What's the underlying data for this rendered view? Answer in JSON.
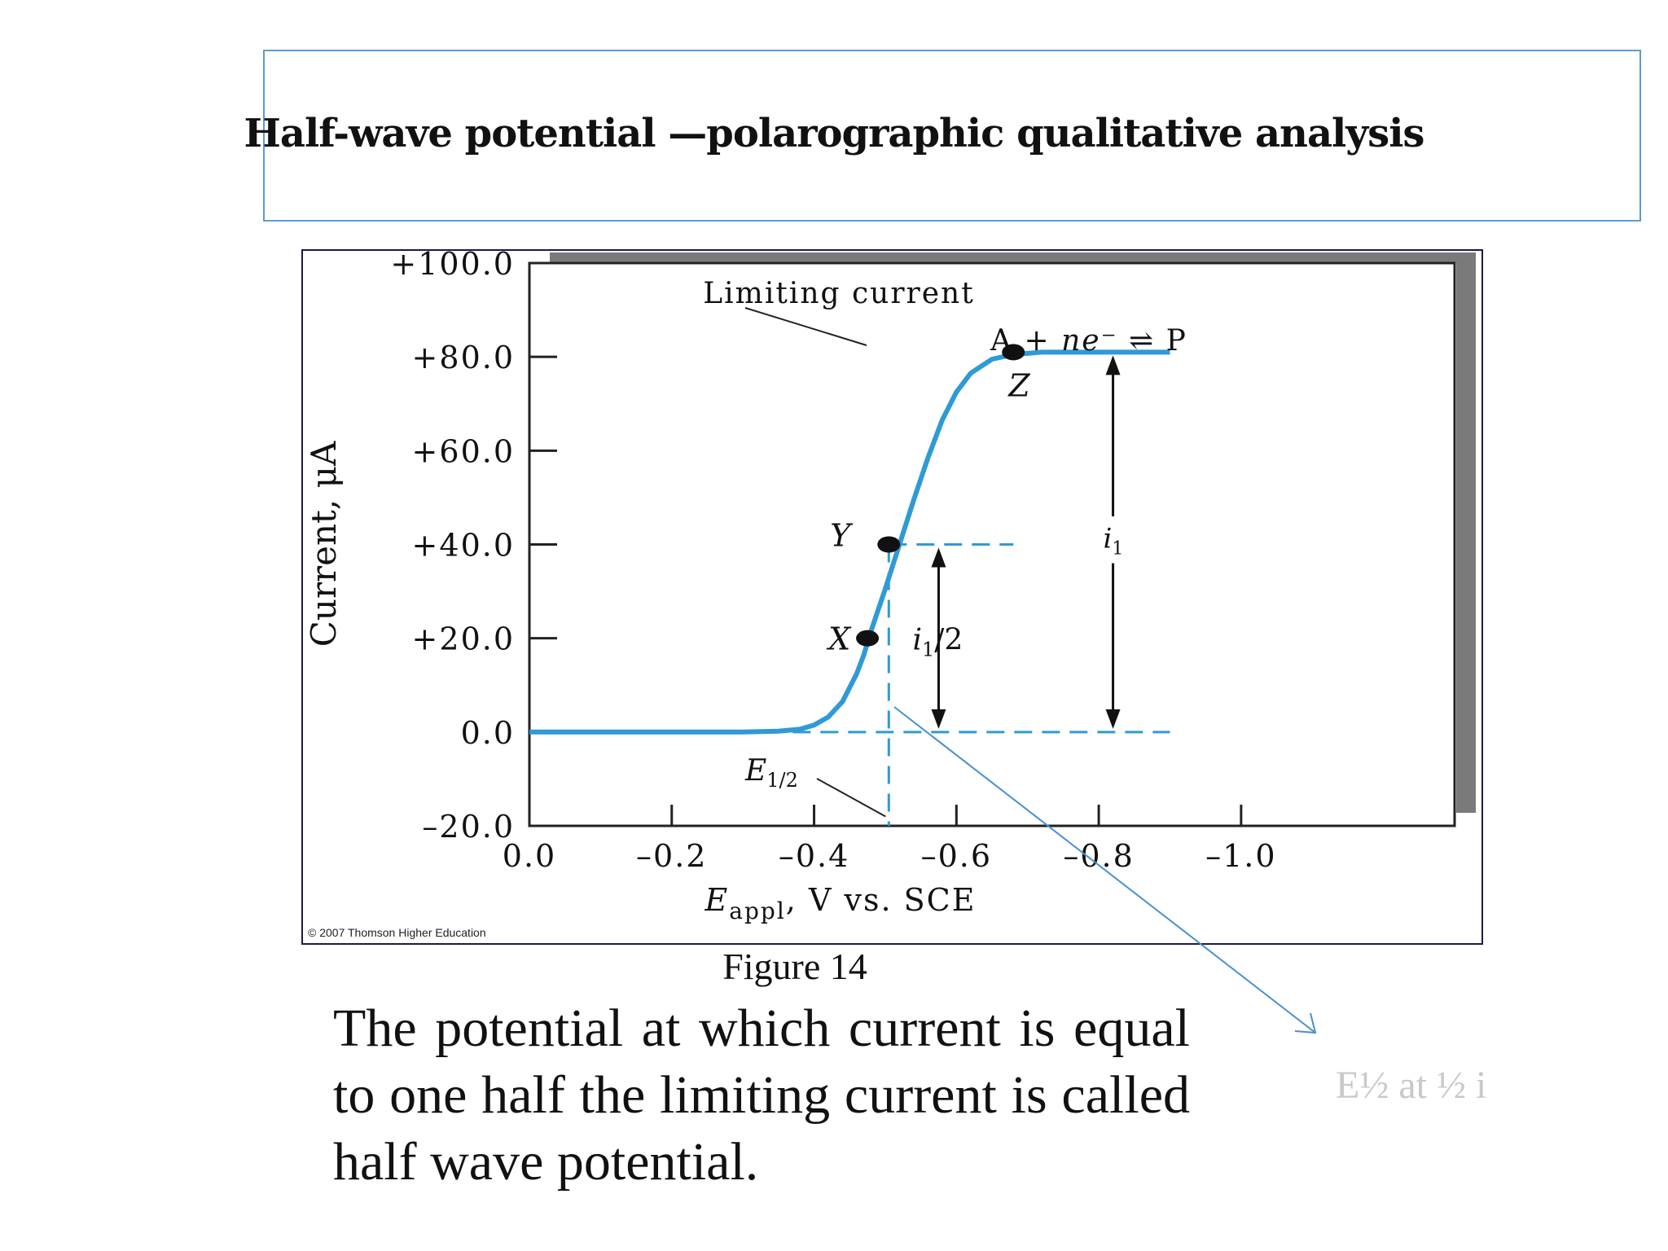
{
  "slide": {
    "title": "Half-wave potential —polarographic qualitative analysis",
    "figure_caption": "Figure 14",
    "body_text": "The potential at which current is equal to one half the limiting current is called half wave potential.",
    "side_note": "E½ at ½ i"
  },
  "chart_data": {
    "type": "line",
    "xlabel": "E_appl, V vs. SCE",
    "xlabel_main": "E",
    "xlabel_sub": "appl",
    "xlabel_rest": ", V vs. SCE",
    "ylabel": "Current, μA",
    "xlim": [
      0.0,
      -1.3
    ],
    "ylim": [
      -20,
      100
    ],
    "x_ticks": [
      0.0,
      -0.2,
      -0.4,
      -0.6,
      -0.8,
      -1.0
    ],
    "x_tick_labels": [
      "0.0",
      "–0.2",
      "–0.4",
      "–0.6",
      "–0.8",
      "–1.0"
    ],
    "y_ticks": [
      100,
      80,
      60,
      40,
      20,
      0,
      -20
    ],
    "y_tick_labels": [
      "+100.0",
      "+80.0",
      "+60.0",
      "+40.0",
      "+20.0",
      "0.0",
      "–20.0"
    ],
    "series": [
      {
        "x": [
          0.0,
          -0.1,
          -0.2,
          -0.3,
          -0.35,
          -0.38,
          -0.4,
          -0.42,
          -0.44,
          -0.46,
          -0.47,
          -0.48,
          -0.5,
          -0.52,
          -0.54,
          -0.56,
          -0.58,
          -0.6,
          -0.62,
          -0.65,
          -0.68,
          -0.72,
          -0.8,
          -0.9
        ],
        "y": [
          0,
          0,
          0,
          0,
          0.2,
          0.6,
          1.5,
          3.2,
          6.5,
          12.5,
          16.5,
          21.5,
          30.5,
          40,
          49.5,
          58.5,
          66.5,
          72.5,
          76.5,
          79.5,
          80.5,
          81,
          81,
          81
        ],
        "color": "#2f9ad6"
      }
    ],
    "points": [
      {
        "label": "X",
        "x": -0.475,
        "y": 20
      },
      {
        "label": "Y",
        "x": -0.505,
        "y": 40
      },
      {
        "label": "Z",
        "x": -0.68,
        "y": 81
      }
    ],
    "annotations": {
      "limiting_current": "Limiting current",
      "reaction_lhs": "A +",
      "reaction_ne": "ne",
      "reaction_arrow": "⇌",
      "reaction_rhs": "P",
      "i_half": "i",
      "i_half_sub": "1",
      "i_half_rest": "/2",
      "i_lim": "i",
      "i_lim_sub": "1",
      "e_half": "E",
      "e_half_sub": "1/2"
    },
    "e_half_x": -0.505,
    "half_current": 40,
    "limiting_current": 81,
    "copyright": "© 2007 Thomson Higher Education"
  }
}
